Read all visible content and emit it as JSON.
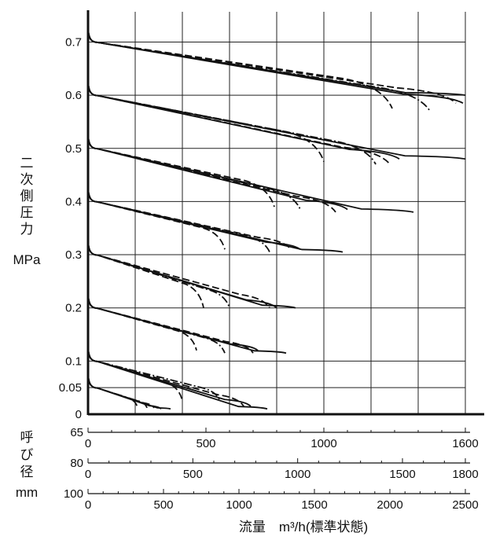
{
  "chart_data": {
    "type": "line",
    "title": "",
    "ylabel": [
      "二",
      "次",
      "側",
      "圧",
      "力"
    ],
    "ylabel_unit": "MPa",
    "ylim": [
      0,
      0.75
    ],
    "y_ticks": [
      "0.7",
      "0.6",
      "0.5",
      "0.4",
      "0.3",
      "0.2",
      "0.1",
      "0.05",
      "0"
    ],
    "y_tick_values": [
      0.7,
      0.6,
      0.5,
      0.4,
      0.3,
      0.2,
      0.1,
      0.05,
      0
    ],
    "grid": true,
    "size_axis_label": [
      "呼",
      "び",
      "径"
    ],
    "size_axis_unit": "mm",
    "xlabel": "流量　m³/h(標準状態)",
    "x_axes": [
      {
        "size": "65",
        "xlim": [
          0,
          1600
        ],
        "major_ticks": [
          0,
          500,
          1000,
          1600
        ],
        "tick_labels": [
          "0",
          "500",
          "1000",
          "1600"
        ]
      },
      {
        "size": "80",
        "xlim": [
          0,
          1800
        ],
        "major_ticks": [
          0,
          500,
          1000,
          1500,
          1800
        ],
        "tick_labels": [
          "0",
          "500",
          "1000",
          "1500",
          "1800"
        ]
      },
      {
        "size": "100",
        "xlim": [
          0,
          2500
        ],
        "major_ticks": [
          0,
          500,
          1000,
          1500,
          2000,
          2500
        ],
        "tick_labels": [
          "0",
          "500",
          "1000",
          "1500",
          "2000",
          "2500"
        ]
      }
    ],
    "legend": "none",
    "line_styles": [
      "solid",
      "dash-dot",
      "dashed"
    ],
    "curve_groups": [
      {
        "set_pressure": 0.7,
        "curves": [
          {
            "style": "dashed",
            "end_x": 1290,
            "end_y": 0.575
          },
          {
            "style": "dash-dot",
            "end_x": 1450,
            "end_y": 0.57
          },
          {
            "style": "dashed",
            "end_x": 1560,
            "end_y": 0.585
          },
          {
            "style": "solid",
            "end_x": 1590,
            "end_y": 0.585
          },
          {
            "style": "solid",
            "end_x": 1600,
            "end_y": 0.6
          }
        ]
      },
      {
        "set_pressure": 0.6,
        "curves": [
          {
            "style": "dashed",
            "end_x": 1000,
            "end_y": 0.475
          },
          {
            "style": "dash-dot",
            "end_x": 1220,
            "end_y": 0.47
          },
          {
            "style": "dashed",
            "end_x": 1280,
            "end_y": 0.47
          },
          {
            "style": "solid",
            "end_x": 1320,
            "end_y": 0.48
          },
          {
            "style": "solid",
            "end_x": 1600,
            "end_y": 0.48
          }
        ]
      },
      {
        "set_pressure": 0.5,
        "curves": [
          {
            "style": "dashed",
            "end_x": 790,
            "end_y": 0.39
          },
          {
            "style": "dash-dot",
            "end_x": 900,
            "end_y": 0.385
          },
          {
            "style": "dashed",
            "end_x": 1050,
            "end_y": 0.38
          },
          {
            "style": "solid",
            "end_x": 1100,
            "end_y": 0.385
          },
          {
            "style": "solid",
            "end_x": 1380,
            "end_y": 0.38
          }
        ]
      },
      {
        "set_pressure": 0.4,
        "curves": [
          {
            "style": "dashed",
            "end_x": 580,
            "end_y": 0.31
          },
          {
            "style": "dash-dot",
            "end_x": 770,
            "end_y": 0.305
          },
          {
            "style": "dashed",
            "end_x": 860,
            "end_y": 0.31
          },
          {
            "style": "solid",
            "end_x": 900,
            "end_y": 0.31
          },
          {
            "style": "solid",
            "end_x": 1080,
            "end_y": 0.305
          }
        ]
      },
      {
        "set_pressure": 0.3,
        "curves": [
          {
            "style": "dashed",
            "end_x": 490,
            "end_y": 0.2
          },
          {
            "style": "dash-dot",
            "end_x": 600,
            "end_y": 0.2
          },
          {
            "style": "dashed",
            "end_x": 770,
            "end_y": 0.2
          },
          {
            "style": "solid",
            "end_x": 800,
            "end_y": 0.2
          },
          {
            "style": "solid",
            "end_x": 880,
            "end_y": 0.2
          }
        ]
      },
      {
        "set_pressure": 0.2,
        "curves": [
          {
            "style": "dashed",
            "end_x": 460,
            "end_y": 0.12
          },
          {
            "style": "dash-dot",
            "end_x": 580,
            "end_y": 0.115
          },
          {
            "style": "dashed",
            "end_x": 700,
            "end_y": 0.115
          },
          {
            "style": "solid",
            "end_x": 720,
            "end_y": 0.12
          },
          {
            "style": "solid",
            "end_x": 840,
            "end_y": 0.115
          }
        ]
      },
      {
        "set_pressure": 0.1,
        "curves": [
          {
            "style": "dashed",
            "end_x": 400,
            "end_y": 0.025
          },
          {
            "style": "dash-dot",
            "end_x": 560,
            "end_y": 0.025
          },
          {
            "style": "dashed",
            "end_x": 660,
            "end_y": 0.015
          },
          {
            "style": "solid",
            "end_x": 690,
            "end_y": 0.015
          },
          {
            "style": "solid",
            "end_x": 760,
            "end_y": 0.01
          }
        ]
      },
      {
        "set_pressure": 0.05,
        "curves": [
          {
            "style": "dashed",
            "end_x": 210,
            "end_y": 0.012
          },
          {
            "style": "dash-dot",
            "end_x": 250,
            "end_y": 0.012
          },
          {
            "style": "dashed",
            "end_x": 280,
            "end_y": 0.012
          },
          {
            "style": "solid",
            "end_x": 310,
            "end_y": 0.01
          },
          {
            "style": "solid",
            "end_x": 350,
            "end_y": 0.01
          }
        ]
      }
    ]
  }
}
